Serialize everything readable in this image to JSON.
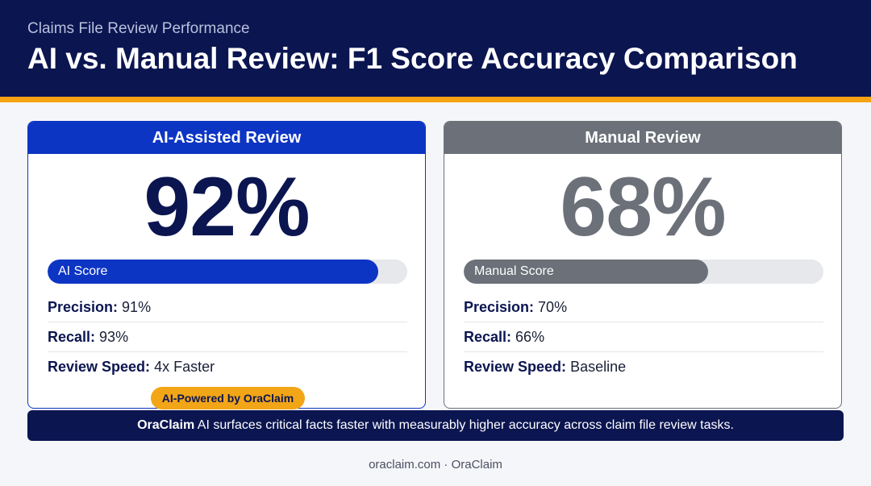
{
  "header": {
    "subtitle": "Claims File Review Performance",
    "title": "AI vs. Manual Review: F1 Score Accuracy Comparison"
  },
  "cards": [
    {
      "heading": "AI-Assisted Review",
      "score": {
        "value": 92,
        "label": "92%"
      },
      "bar_label": "AI Score",
      "rows": [
        {
          "label": "Precision:",
          "value": "91%"
        },
        {
          "label": "Recall:",
          "value": "93%"
        },
        {
          "label": "Review Speed:",
          "value": "4x Faster"
        }
      ]
    },
    {
      "heading": "Manual Review",
      "score": {
        "value": 68,
        "label": "68%"
      },
      "bar_label": "Manual Score",
      "rows": [
        {
          "label": "Precision:",
          "value": "70%"
        },
        {
          "label": "Recall:",
          "value": "66%"
        },
        {
          "label": "Review Speed:",
          "value": "Baseline"
        }
      ]
    }
  ],
  "badge": "AI-Powered by OraClaim",
  "banner": {
    "brand": "OraClaim",
    "text": "AI surfaces critical facts faster with measurably higher accuracy across claim file review tasks."
  },
  "footer": "oraclaim.com · OraClaim"
}
